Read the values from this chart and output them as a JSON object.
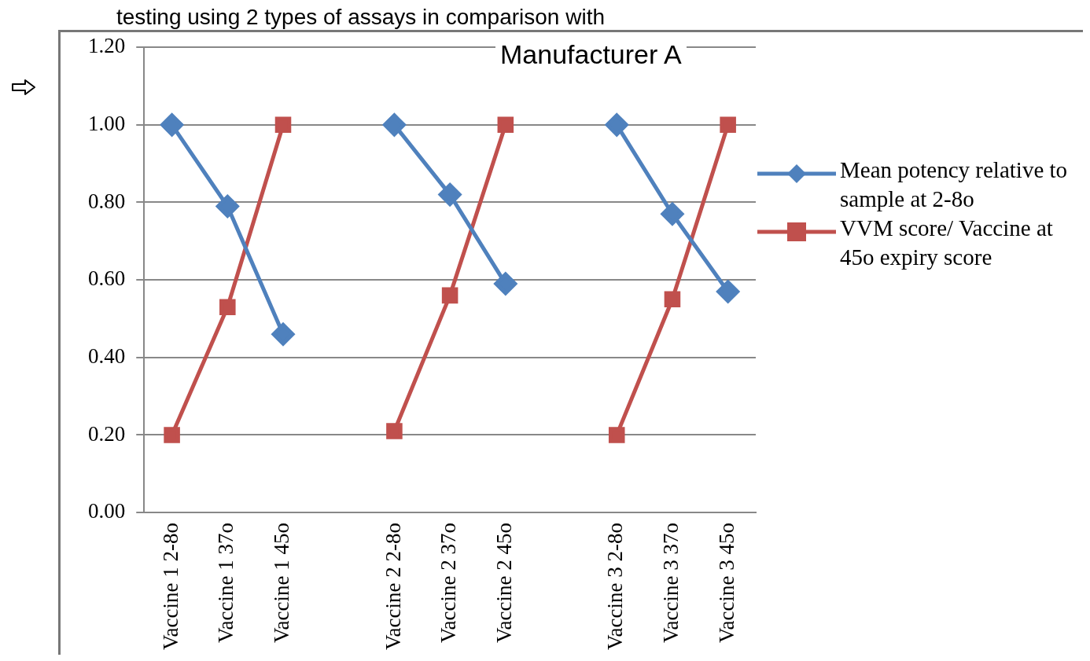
{
  "chart_data": {
    "type": "line",
    "title": "testing using 2 types of assays in comparison with",
    "annotations": [
      "Manufacturer A"
    ],
    "categories": [
      "Vaccine 1 2-8o",
      "Vaccine 1 37o",
      "Vaccine 1 45o",
      null,
      "Vaccine 2 2-8o",
      "Vaccine 2 37o",
      "Vaccine 2 45o",
      null,
      "Vaccine 3 2-8o",
      "Vaccine 3 37o",
      "Vaccine 3 45o"
    ],
    "series": [
      {
        "name": "Mean potency relative to sample at 2-8o",
        "color": "#4f81bd",
        "marker": "diamond",
        "values": [
          1.0,
          0.79,
          0.46,
          null,
          1.0,
          0.82,
          0.59,
          null,
          1.0,
          0.77,
          0.57
        ]
      },
      {
        "name": "VVM score/ Vaccine at 45o expiry score",
        "color": "#c0504d",
        "marker": "square",
        "values": [
          0.2,
          0.53,
          1.0,
          null,
          0.21,
          0.56,
          1.0,
          null,
          0.2,
          0.55,
          1.0
        ]
      }
    ],
    "ylim": [
      0,
      1.2
    ],
    "yticks": [
      {
        "value": 0,
        "label": "0.00"
      },
      {
        "value": 0.2,
        "label": "0.20"
      },
      {
        "value": 0.4,
        "label": "0.40"
      },
      {
        "value": 0.6,
        "label": "0.60"
      },
      {
        "value": 0.8,
        "label": "0.80"
      },
      {
        "value": 1,
        "label": "1.00"
      },
      {
        "value": 1.2,
        "label": "1.20"
      }
    ],
    "grid": "y",
    "legend": "right"
  }
}
